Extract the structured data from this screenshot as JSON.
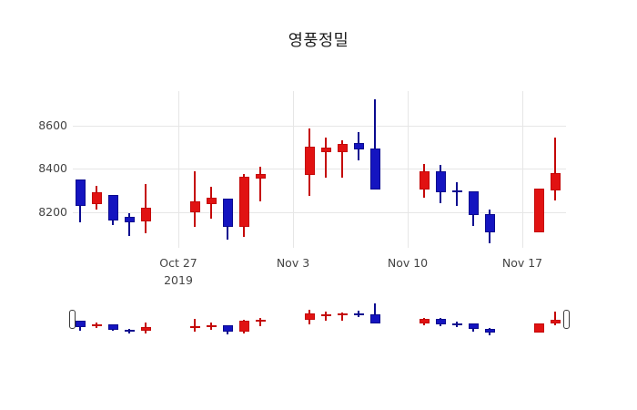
{
  "title": "영풍정밀",
  "colors": {
    "up_fill": "#e11212",
    "up_line": "#c40808",
    "down_fill": "#1414c0",
    "down_line": "#0b0b8f",
    "grid": "#e6e6e6",
    "tick_text": "#444444",
    "title_text": "#1a1a1a",
    "handle_fill": "#ffffff",
    "handle_border": "#3c3c3c"
  },
  "yaxis": {
    "ticks": [
      8200,
      8400,
      8600
    ],
    "range": [
      8033,
      8762
    ]
  },
  "xaxis": {
    "ticks": [
      {
        "date": "2019-10-27",
        "label": "Oct 27",
        "sublabel": "2019"
      },
      {
        "date": "2019-11-03",
        "label": "Nov 3",
        "sublabel": ""
      },
      {
        "date": "2019-11-10",
        "label": "Nov 10",
        "sublabel": ""
      },
      {
        "date": "2019-11-17",
        "label": "Nov 17",
        "sublabel": ""
      }
    ]
  },
  "rangeslider": {
    "visible": true,
    "selected_range": "full"
  },
  "chart_data": {
    "type": "candlestick",
    "title": "영풍정밀",
    "x": [
      "2019-10-21",
      "2019-10-22",
      "2019-10-23",
      "2019-10-24",
      "2019-10-25",
      "2019-10-28",
      "2019-10-29",
      "2019-10-30",
      "2019-10-31",
      "2019-11-01",
      "2019-11-04",
      "2019-11-05",
      "2019-11-06",
      "2019-11-07",
      "2019-11-08",
      "2019-11-11",
      "2019-11-12",
      "2019-11-13",
      "2019-11-14",
      "2019-11-15",
      "2019-11-18",
      "2019-11-19"
    ],
    "open": [
      8350,
      8235,
      8280,
      8175,
      8155,
      8200,
      8235,
      8260,
      8130,
      8355,
      8370,
      8480,
      8480,
      8520,
      8495,
      8305,
      8390,
      8300,
      8295,
      8190,
      8105,
      8300
    ],
    "high": [
      8350,
      8320,
      8280,
      8195,
      8330,
      8390,
      8315,
      8260,
      8375,
      8410,
      8590,
      8545,
      8535,
      8570,
      8725,
      8425,
      8420,
      8340,
      8295,
      8210,
      8310,
      8545
    ],
    "low": [
      8150,
      8210,
      8140,
      8090,
      8100,
      8130,
      8170,
      8070,
      8085,
      8250,
      8275,
      8360,
      8360,
      8440,
      8305,
      8265,
      8240,
      8230,
      8135,
      8055,
      8105,
      8255
    ],
    "close": [
      8230,
      8290,
      8160,
      8150,
      8220,
      8250,
      8265,
      8130,
      8365,
      8375,
      8505,
      8500,
      8515,
      8490,
      8305,
      8390,
      8290,
      8290,
      8185,
      8105,
      8310,
      8380
    ],
    "xlabel": "",
    "ylabel": "",
    "ylim": [
      8033,
      8762
    ],
    "grid": true,
    "legend": "none",
    "up_means": "close > open (red)",
    "down_means": "close < open (blue)"
  }
}
